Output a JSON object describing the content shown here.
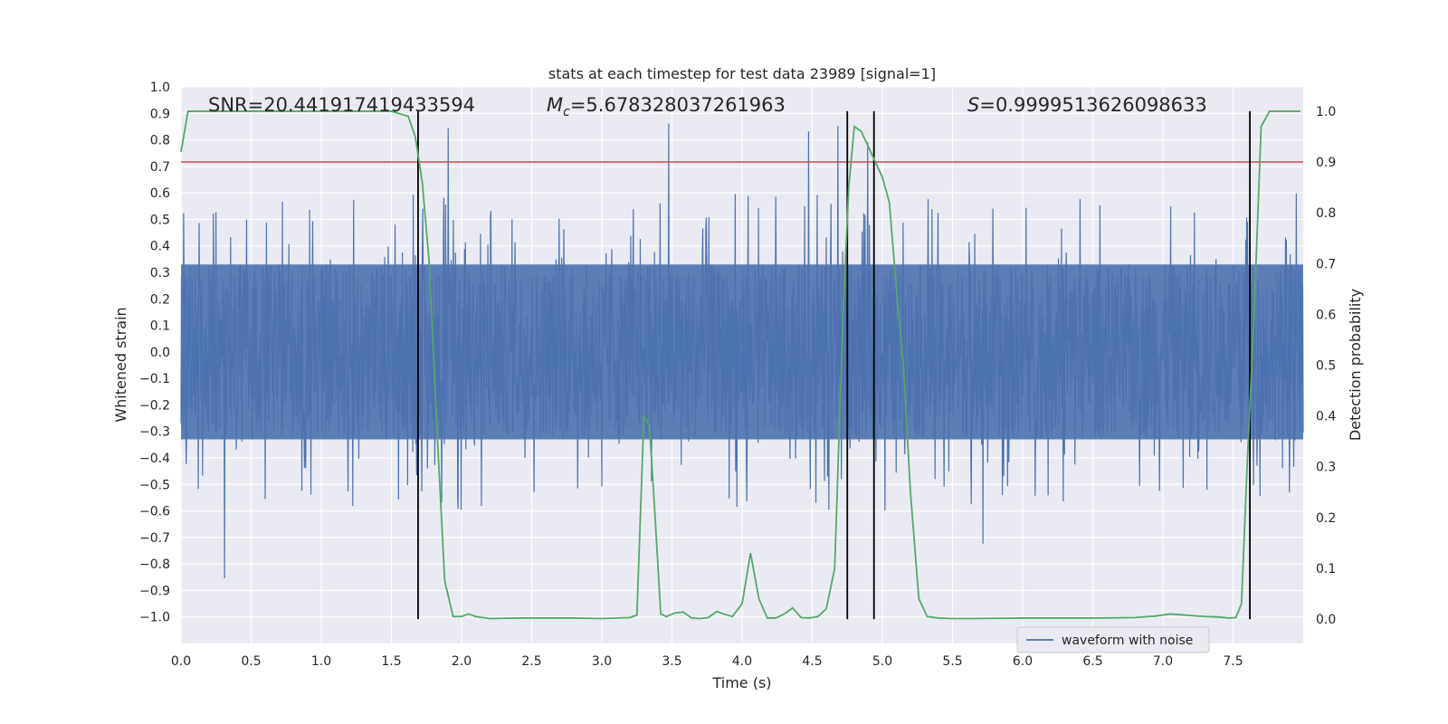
{
  "chart_data": {
    "type": "line",
    "title": "stats at each timestep for test data 23989 [signal=1]",
    "xlabel": "Time (s)",
    "ylabel": "Whitened strain",
    "y2label": "Detection probability",
    "xlim": [
      0.0,
      8.0
    ],
    "ylim": [
      -1.1,
      1.0
    ],
    "y2lim": [
      -0.048,
      1.048
    ],
    "x_ticks": [
      "0.0",
      "0.5",
      "1.0",
      "1.5",
      "2.0",
      "2.5",
      "3.0",
      "3.5",
      "4.0",
      "4.5",
      "5.0",
      "5.5",
      "6.0",
      "6.5",
      "7.0",
      "7.5"
    ],
    "y_ticks": [
      "1.0",
      "0.9",
      "0.8",
      "0.7",
      "0.6",
      "0.5",
      "0.4",
      "0.3",
      "0.2",
      "0.1",
      "0.0",
      "−0.1",
      "−0.2",
      "−0.3",
      "−0.4",
      "−0.5",
      "−0.6",
      "−0.7",
      "−0.8",
      "−0.9",
      "−1.0"
    ],
    "y2_ticks": [
      "1.0",
      "0.9",
      "0.8",
      "0.7",
      "0.6",
      "0.5",
      "0.4",
      "0.3",
      "0.2",
      "0.1",
      "0.0"
    ],
    "annotations": {
      "snr": "SNR=20.441917419433594",
      "mc_symbol": "M",
      "mc_subscript": "c",
      "mc_value": "=5.678328037261963",
      "s_symbol": "S",
      "s_value": "=0.9999513626098633"
    },
    "threshold": {
      "value": 0.9,
      "axis": "right",
      "color": "#c44e52"
    },
    "vlines": [
      1.69,
      4.75,
      4.94,
      7.62
    ],
    "legend": {
      "label": "waveform with noise",
      "position": "lower-right"
    },
    "series": [
      {
        "name": "waveform with noise",
        "axis": "left",
        "color": "#4c72b0",
        "x_range": [
          0.0,
          8.0
        ],
        "band": [
          -0.33,
          0.33
        ],
        "peak_range": [
          -0.86,
          0.89
        ]
      },
      {
        "axis": "right",
        "color": "#55a868",
        "x": [
          0.0,
          0.05,
          0.1,
          0.2,
          0.3,
          0.5,
          0.7,
          0.9,
          1.1,
          1.3,
          1.5,
          1.62,
          1.67,
          1.72,
          1.77,
          1.82,
          1.88,
          1.94,
          2.0,
          2.05,
          2.1,
          2.2,
          2.4,
          2.6,
          2.8,
          3.0,
          3.2,
          3.25,
          3.3,
          3.34,
          3.38,
          3.42,
          3.46,
          3.52,
          3.58,
          3.64,
          3.7,
          3.76,
          3.82,
          3.87,
          3.93,
          4.0,
          4.06,
          4.12,
          4.18,
          4.24,
          4.3,
          4.36,
          4.42,
          4.48,
          4.54,
          4.6,
          4.66,
          4.72,
          4.76,
          4.8,
          4.85,
          4.9,
          4.95,
          5.0,
          5.05,
          5.1,
          5.15,
          5.2,
          5.26,
          5.32,
          5.4,
          5.5,
          5.6,
          6.0,
          6.5,
          6.8,
          6.95,
          7.05,
          7.15,
          7.3,
          7.4,
          7.47,
          7.52,
          7.56,
          7.6,
          7.65,
          7.7,
          7.76,
          7.82,
          7.9,
          7.98
        ],
        "values": [
          0.92,
          1.0,
          1.0,
          1.0,
          1.0,
          1.0,
          1.0,
          1.0,
          1.0,
          1.0,
          1.0,
          0.99,
          0.95,
          0.86,
          0.7,
          0.4,
          0.075,
          0.005,
          0.005,
          0.01,
          0.005,
          0.001,
          0.002,
          0.002,
          0.002,
          0.001,
          0.003,
          0.008,
          0.4,
          0.38,
          0.2,
          0.01,
          0.005,
          0.012,
          0.014,
          0.002,
          0.001,
          0.003,
          0.015,
          0.01,
          0.005,
          0.03,
          0.13,
          0.04,
          0.002,
          0.002,
          0.01,
          0.022,
          0.003,
          0.002,
          0.005,
          0.02,
          0.1,
          0.6,
          0.85,
          0.97,
          0.96,
          0.93,
          0.9,
          0.87,
          0.82,
          0.65,
          0.5,
          0.25,
          0.04,
          0.005,
          0.002,
          0.001,
          0.001,
          0.002,
          0.002,
          0.003,
          0.006,
          0.01,
          0.008,
          0.005,
          0.004,
          0.002,
          0.003,
          0.03,
          0.3,
          0.6,
          0.97,
          1.0,
          1.0,
          1.0,
          1.0
        ]
      }
    ]
  }
}
